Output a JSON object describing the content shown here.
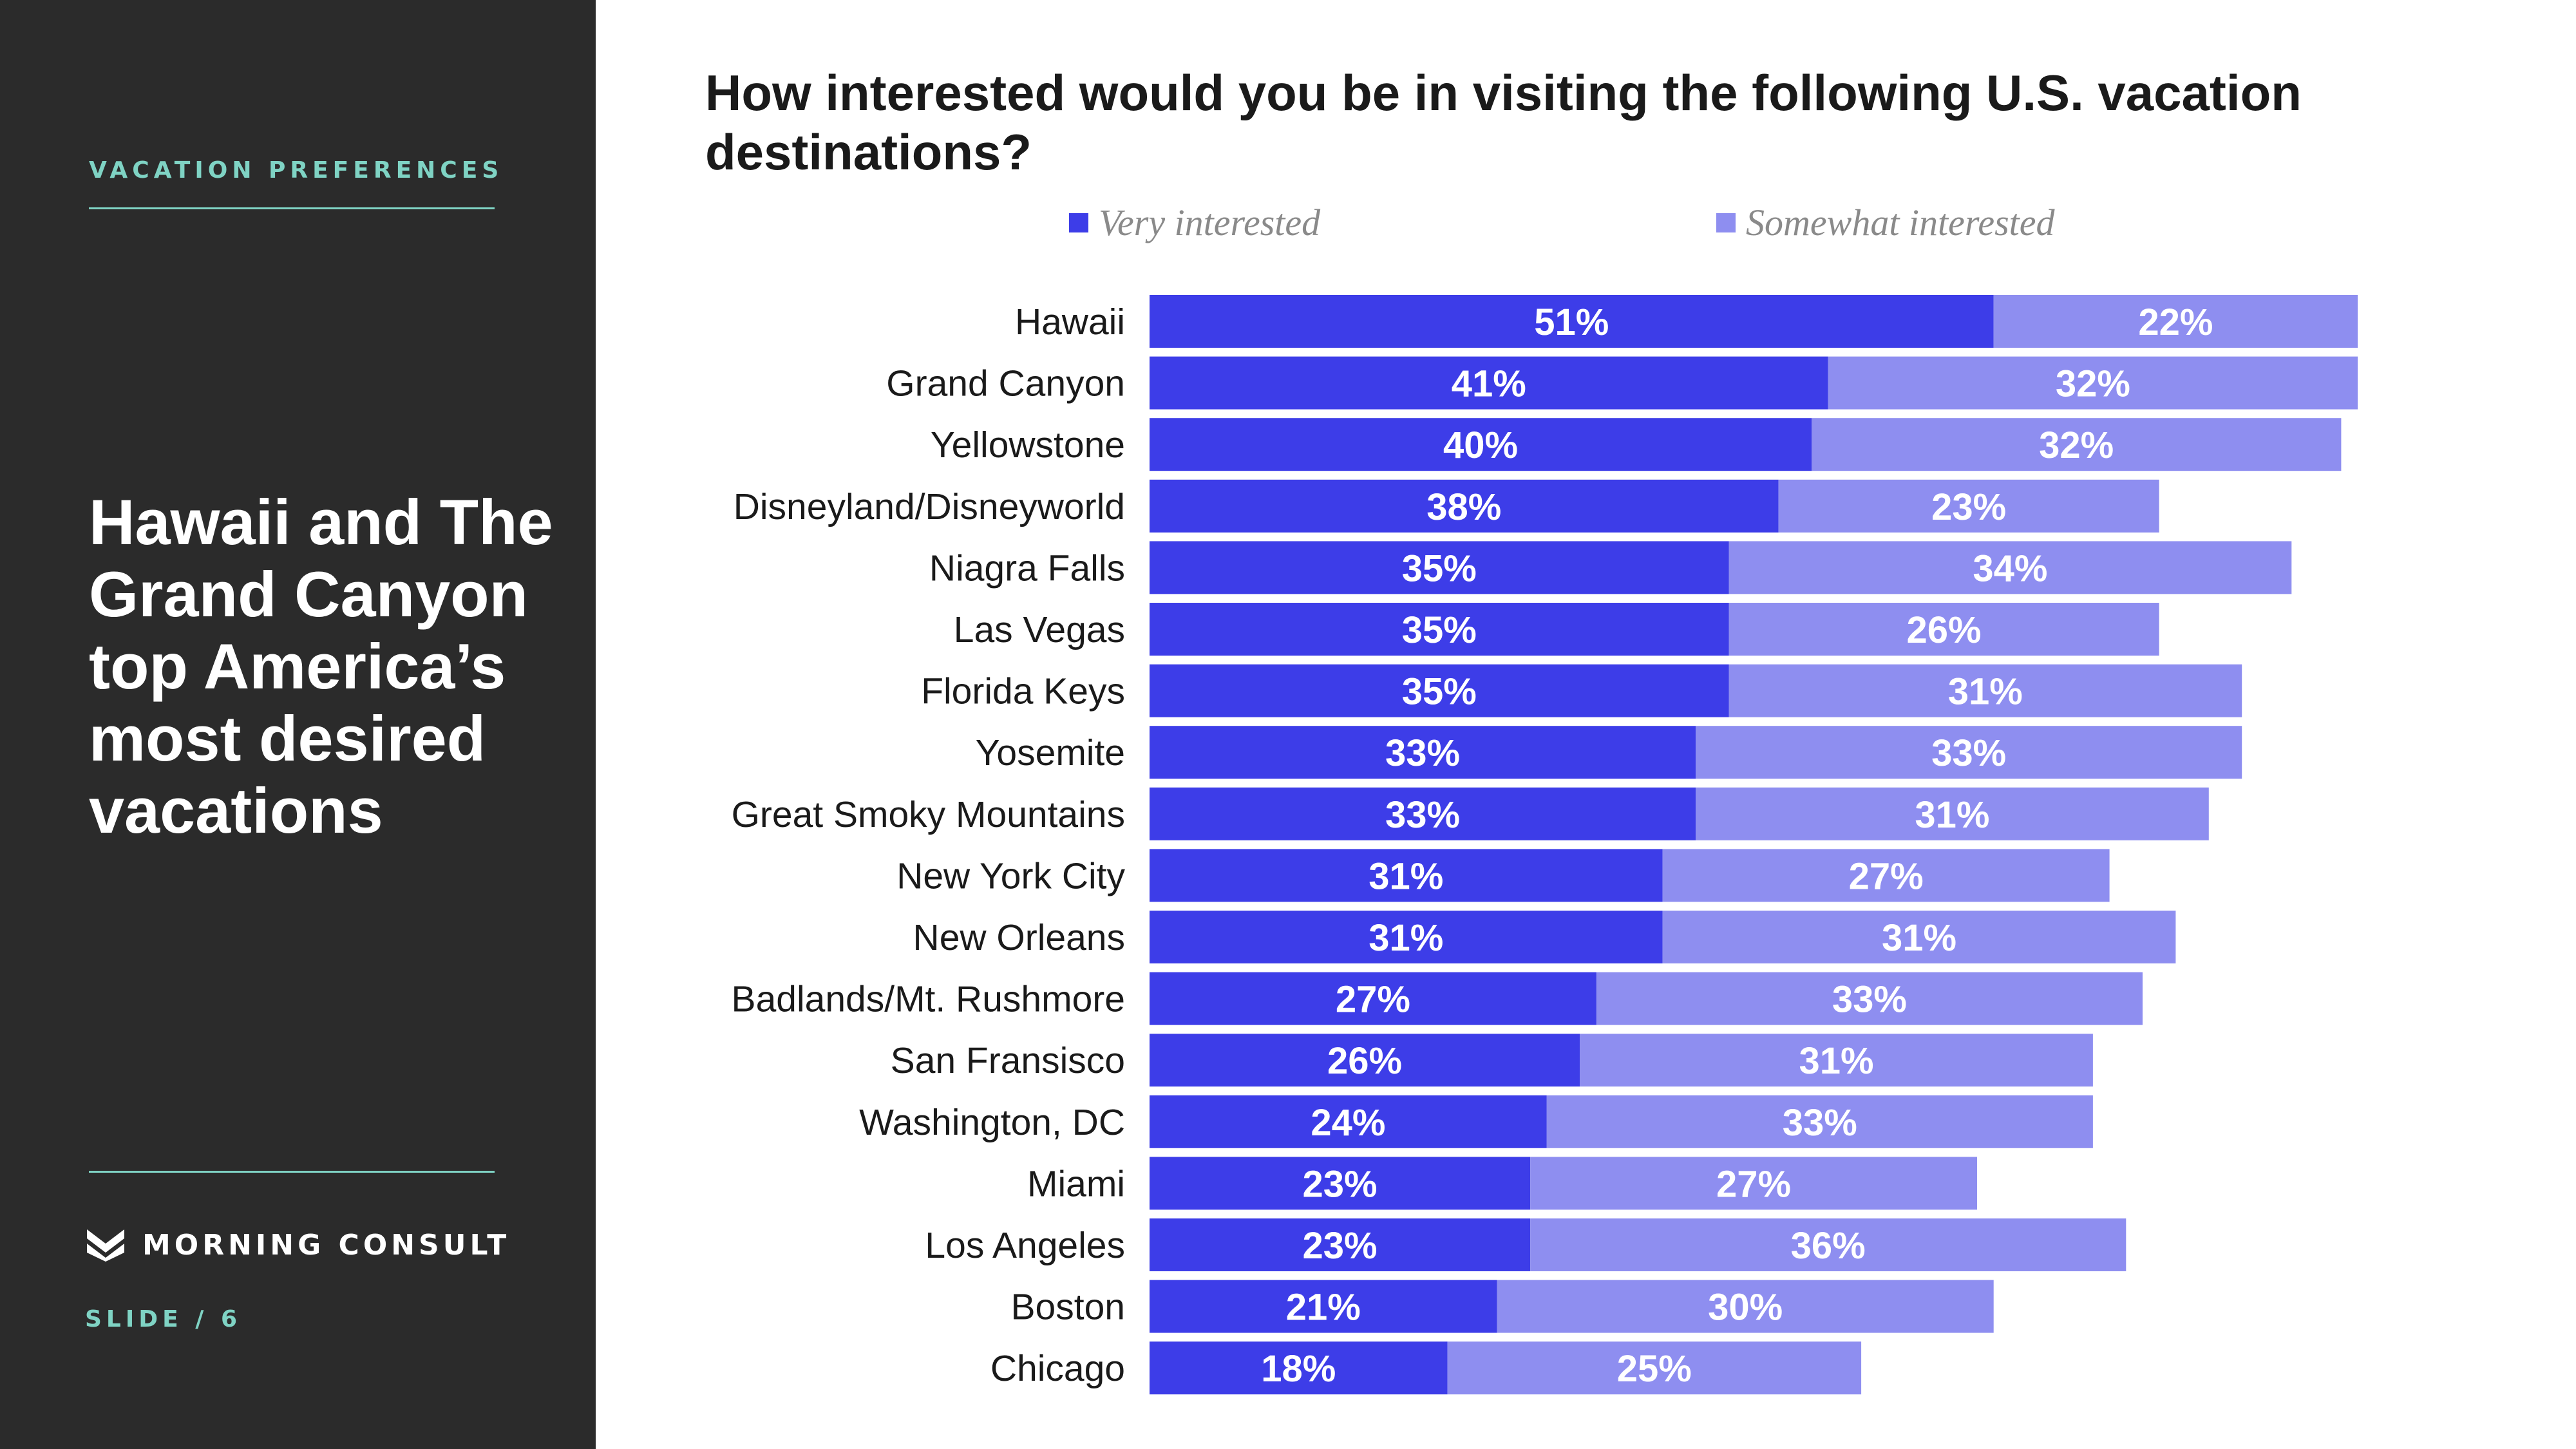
{
  "sidebar": {
    "section_label": "VACATION PREFERENCES",
    "headline": "Hawaii and The Grand Canyon top America’s most desired vacations",
    "brand_name": "MORNING CONSULT",
    "slide_label": "SLIDE /  6"
  },
  "colors": {
    "sidebar_bg": "#2b2b2b",
    "accent_teal": "#7fd3c4",
    "very_interested": "#3d3de8",
    "somewhat_interested": "#8e8ef0",
    "category_text": "#1a1a1a"
  },
  "icons": {
    "brand_logo": "morning-consult-m-icon"
  },
  "chart_data": {
    "type": "bar",
    "orientation": "horizontal",
    "stacked": true,
    "title": "How interested would you be in visiting the following U.S. vacation destinations?",
    "legend_position": "top",
    "grid": false,
    "xlim": [
      0,
      100
    ],
    "categories": [
      "Hawaii",
      "Grand Canyon",
      "Yellowstone",
      "Disneyland/Disneyworld",
      "Niagra Falls",
      "Las Vegas",
      "Florida Keys",
      "Yosemite",
      "Great Smoky Mountains",
      "New York City",
      "New Orleans",
      "Badlands/Mt. Rushmore",
      "San Fransisco",
      "Washington, DC",
      "Miami",
      "Los Angeles",
      "Boston",
      "Chicago"
    ],
    "series": [
      {
        "name": "Very interested",
        "values": [
          51,
          41,
          40,
          38,
          35,
          35,
          35,
          33,
          33,
          31,
          31,
          27,
          26,
          24,
          23,
          23,
          21,
          18
        ],
        "labels": [
          "51%",
          "41%",
          "40%",
          "38%",
          "35%",
          "35%",
          "35%",
          "33%",
          "33%",
          "31%",
          "31%",
          "27%",
          "26%",
          "24%",
          "23%",
          "23%",
          "21%",
          "18%"
        ]
      },
      {
        "name": "Somewhat interested",
        "values": [
          22,
          32,
          32,
          23,
          34,
          26,
          31,
          33,
          31,
          27,
          31,
          33,
          31,
          33,
          27,
          36,
          30,
          25
        ],
        "labels": [
          "22%",
          "32%",
          "32%",
          "23%",
          "34%",
          "26%",
          "31%",
          "33%",
          "31%",
          "27%",
          "31%",
          "33%",
          "31%",
          "33%",
          "27%",
          "36%",
          "30%",
          "25%"
        ]
      }
    ]
  }
}
